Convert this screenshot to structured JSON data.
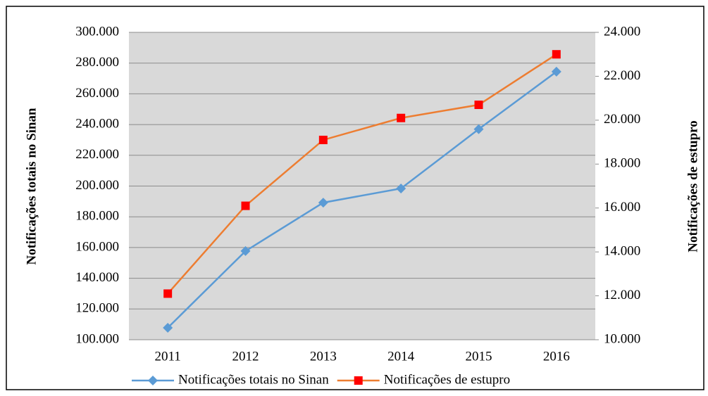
{
  "chart_data": {
    "type": "line",
    "categories": [
      "2011",
      "2012",
      "2013",
      "2014",
      "2015",
      "2016"
    ],
    "y_label": "Notificações totais no Sinan",
    "y2_label": "Notificações de estupro",
    "ylim": [
      100000,
      300000
    ],
    "yticks": [
      {
        "value": 100000,
        "label": "100.000"
      },
      {
        "value": 120000,
        "label": "120.000"
      },
      {
        "value": 140000,
        "label": "140.000"
      },
      {
        "value": 160000,
        "label": "160.000"
      },
      {
        "value": 180000,
        "label": "180.000"
      },
      {
        "value": 200000,
        "label": "200.000"
      },
      {
        "value": 220000,
        "label": "220.000"
      },
      {
        "value": 240000,
        "label": "240.000"
      },
      {
        "value": 260000,
        "label": "260.000"
      },
      {
        "value": 280000,
        "label": "280.000"
      },
      {
        "value": 300000,
        "label": "300.000"
      }
    ],
    "y2lim": [
      10000,
      24000
    ],
    "y2ticks": [
      {
        "value": 10000,
        "label": "10.000"
      },
      {
        "value": 12000,
        "label": "12.000"
      },
      {
        "value": 14000,
        "label": "14.000"
      },
      {
        "value": 16000,
        "label": "16.000"
      },
      {
        "value": 18000,
        "label": "18.000"
      },
      {
        "value": 20000,
        "label": "20.000"
      },
      {
        "value": 22000,
        "label": "22.000"
      },
      {
        "value": 24000,
        "label": "24.000"
      }
    ],
    "grid": true,
    "legend": "bottom",
    "series": [
      {
        "name": "Notificações totais no Sinan",
        "color": "#5b9bd5",
        "marker": "diamond",
        "marker_color": "#5b9bd5",
        "axis": "y",
        "values": [
          107800,
          157700,
          189200,
          198400,
          237000,
          274400
        ]
      },
      {
        "name": "Notificações de estupro",
        "color": "#ed7d31",
        "marker": "square",
        "marker_color": "#ff0000",
        "axis": "y2",
        "values": [
          12100,
          16100,
          19100,
          20100,
          20700,
          23000
        ]
      }
    ]
  }
}
